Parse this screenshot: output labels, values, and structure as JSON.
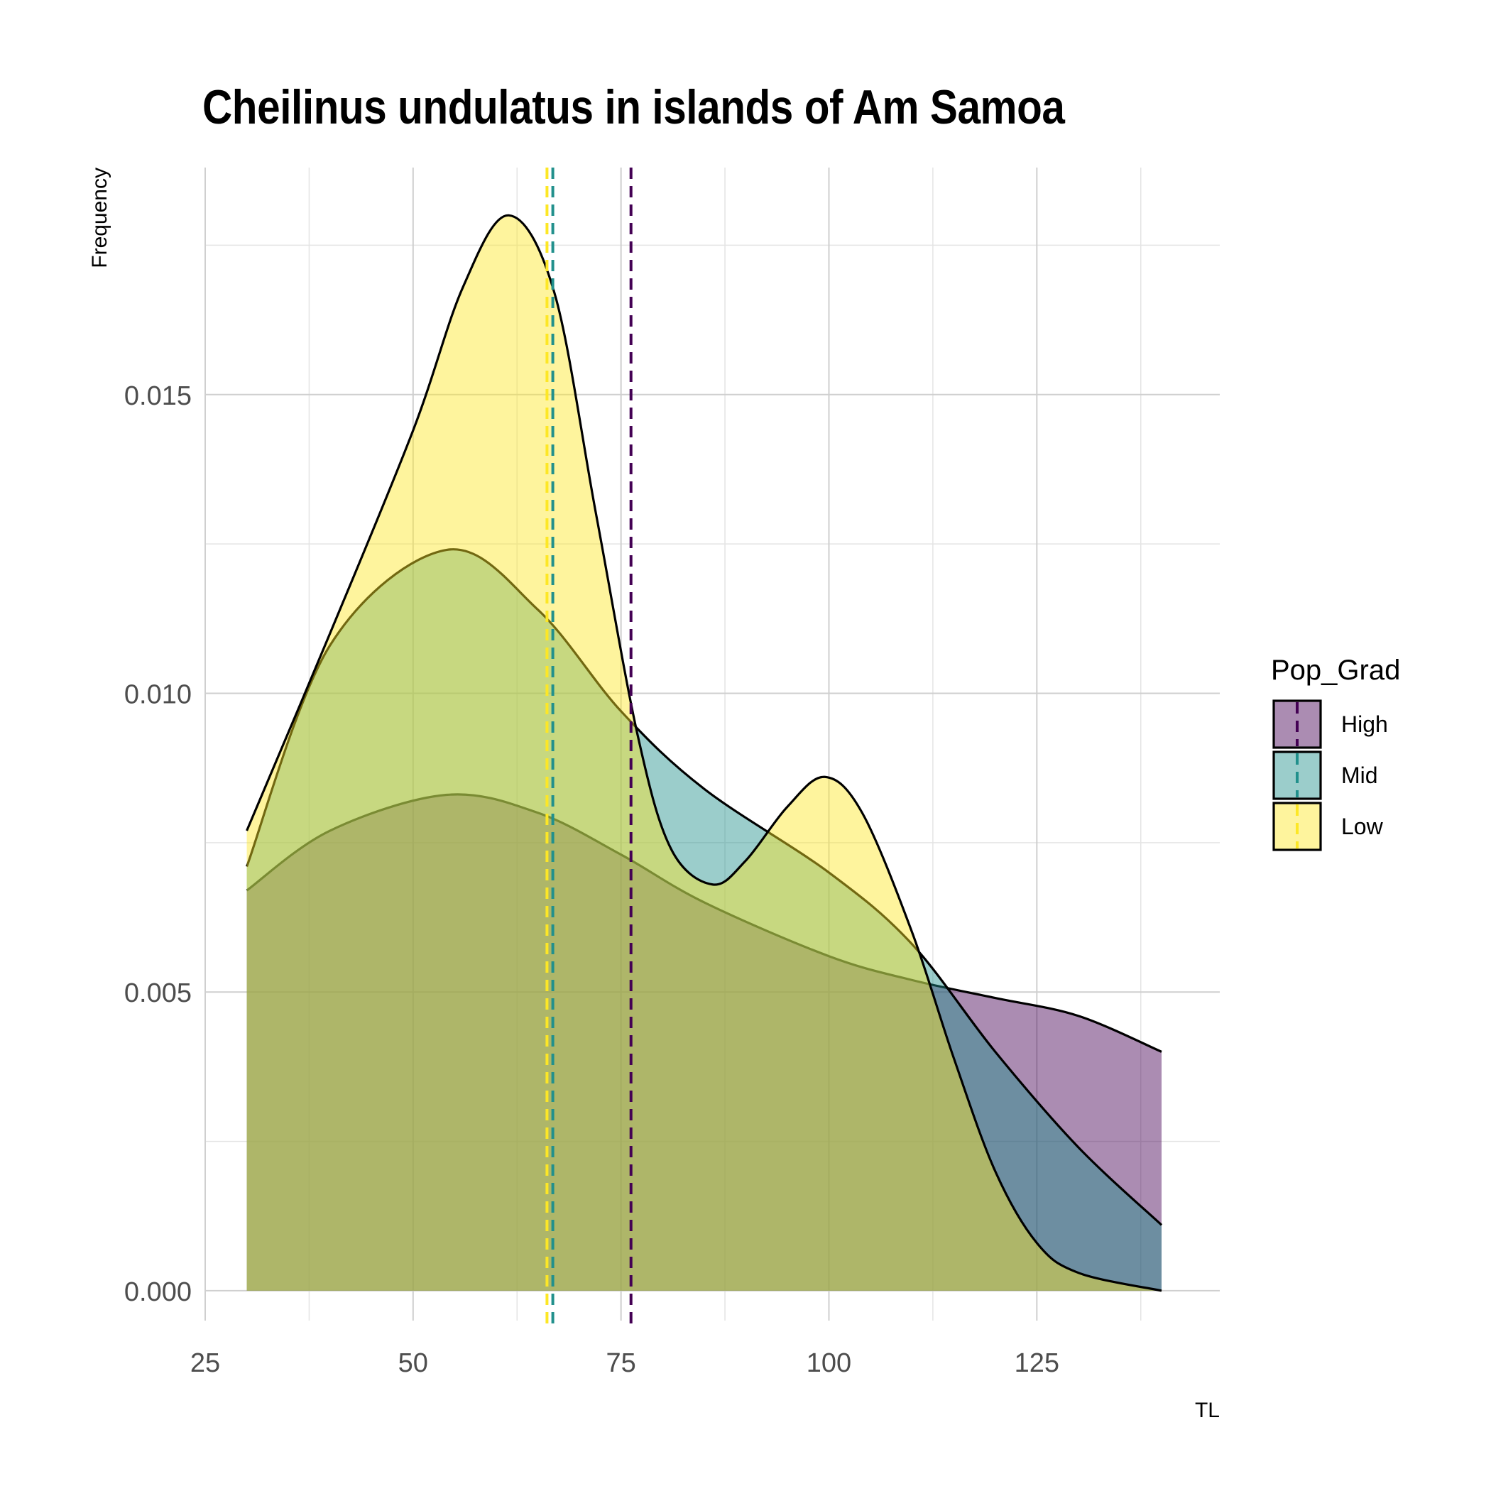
{
  "chart_data": {
    "type": "area",
    "title": "Cheilinus undulatus in islands of Am Samoa",
    "xlabel": "TL",
    "ylabel": "Frequency",
    "xlim": [
      25,
      147
    ],
    "ylim": [
      -0.0005,
      0.0188
    ],
    "x_ticks": [
      25,
      50,
      75,
      100,
      125
    ],
    "y_ticks": [
      0.0,
      0.005,
      0.01,
      0.015
    ],
    "y_tick_labels": [
      "0.000",
      "0.005",
      "0.010",
      "0.015"
    ],
    "grid": true,
    "legend": {
      "title": "Pop_Grad",
      "position": "right"
    },
    "series": [
      {
        "name": "High",
        "fill": "#440154",
        "line": "#440154",
        "mean": 76.2,
        "x": [
          30,
          40,
          54,
          65,
          75,
          85,
          100,
          110,
          120,
          130,
          140
        ],
        "values": [
          0.0067,
          0.0077,
          0.0083,
          0.008,
          0.0073,
          0.0065,
          0.0056,
          0.0052,
          0.0049,
          0.0046,
          0.004
        ]
      },
      {
        "name": "Mid",
        "fill": "#21908C",
        "line": "#21908C",
        "mean": 66.8,
        "x": [
          30,
          40,
          54,
          65,
          75,
          85,
          100,
          110,
          120,
          130,
          140
        ],
        "values": [
          0.0071,
          0.0108,
          0.0124,
          0.0114,
          0.0097,
          0.0084,
          0.007,
          0.0058,
          0.004,
          0.0024,
          0.0011
        ]
      },
      {
        "name": "Low",
        "fill": "#FDE725",
        "line": "#FDE725",
        "mean": 66.1,
        "x": [
          30,
          40,
          50,
          56,
          61.5,
          67,
          72,
          77,
          81,
          86,
          90,
          95,
          99.5,
          104,
          110,
          115,
          120,
          125,
          130,
          140
        ],
        "values": [
          0.0077,
          0.011,
          0.0144,
          0.0168,
          0.018,
          0.0167,
          0.013,
          0.0093,
          0.0074,
          0.0068,
          0.0072,
          0.0081,
          0.0086,
          0.008,
          0.006,
          0.0039,
          0.002,
          0.0008,
          0.0003,
          0.0
        ]
      }
    ]
  }
}
